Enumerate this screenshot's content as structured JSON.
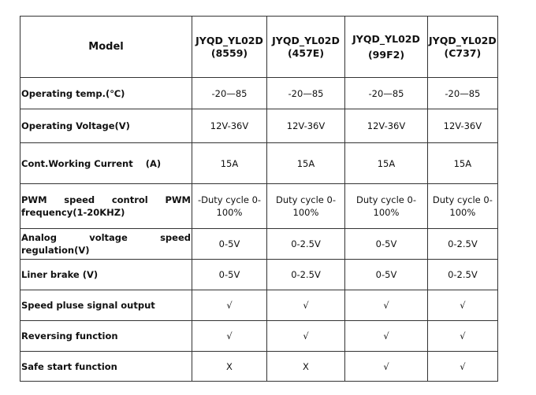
{
  "table": {
    "header": {
      "label": "Model",
      "models": [
        {
          "name": "JYQD_YL02D",
          "code": "(8559)"
        },
        {
          "name": "JYQD_YL02D",
          "code": "(457E)"
        },
        {
          "name": "JYQD_YL02D",
          "code": "(99F2)"
        },
        {
          "name": "JYQD_YL02D",
          "code": "(C737)"
        }
      ]
    },
    "rows": [
      {
        "label": "Operating temp.(℃)",
        "values": [
          "-20—85",
          "-20—85",
          "-20—85",
          "-20—85"
        ]
      },
      {
        "label": "Operating Voltage(V)",
        "values": [
          "12V-36V",
          "12V-36V",
          "12V-36V",
          "12V-36V"
        ]
      },
      {
        "label": "Cont.Working Current    (A)",
        "values": [
          "15A",
          "15A",
          "15A",
          "15A"
        ]
      },
      {
        "label": "PWM speed control PWM frequency(1-20KHZ)",
        "values": [
          "-Duty cycle 0-100%",
          "Duty cycle 0-100%",
          "Duty cycle 0-100%",
          "Duty cycle 0-100%"
        ]
      },
      {
        "label": "Analog voltage speed regulation(V)",
        "values": [
          "0-5V",
          "0-2.5V",
          "0-5V",
          "0-2.5V"
        ]
      },
      {
        "label": "Liner brake  (V)",
        "values": [
          "0-5V",
          "0-2.5V",
          "0-5V",
          "0-2.5V"
        ]
      },
      {
        "label": "Speed pluse signal output",
        "values": [
          "√",
          "√",
          "√",
          "√"
        ]
      },
      {
        "label": "Reversing function",
        "values": [
          "√",
          "√",
          "√",
          "√"
        ]
      },
      {
        "label": "Safe start function",
        "values": [
          "X",
          "X",
          "√",
          "√"
        ]
      }
    ]
  }
}
